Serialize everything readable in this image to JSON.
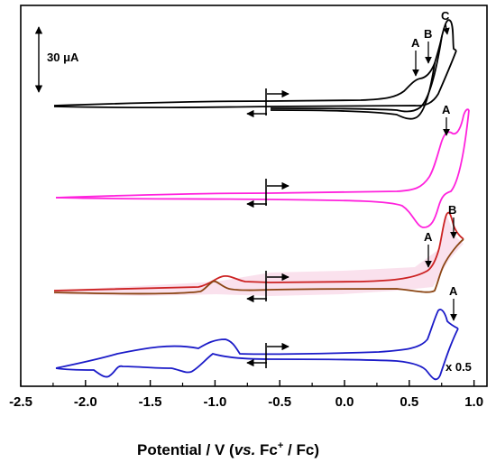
{
  "chart_data": {
    "type": "line",
    "title": "",
    "xlabel": "Potential / V (vs. Fc+ / Fc)",
    "xlabel_parts": {
      "main": "Potential / V (",
      "italic": "vs.",
      "fc": " Fc",
      "sup": "+",
      "end": " / Fc)"
    },
    "xlim": [
      -2.5,
      1.1
    ],
    "x_ticks": [
      -2.5,
      -2.0,
      -1.5,
      -1.0,
      -0.5,
      0.0,
      0.5,
      1.0
    ],
    "x_tick_labels": [
      "-2.5",
      "-2.0",
      "-1.5",
      "-1.0",
      "-0.5",
      "0.0",
      "0.5",
      "1.0"
    ],
    "y_axis": "no numeric axis; traces offset vertically",
    "scale_bar": {
      "label": "30 μA",
      "current_uA": 30
    },
    "colors": {
      "black": "#000000",
      "magenta": "#ff22dd",
      "red": "#cc2222",
      "brown": "#8b4513",
      "blue": "#1b1bc8",
      "pink_fill": "#f6c9de"
    },
    "series": [
      {
        "color": "#000000",
        "x_range": [
          -2.25,
          0.95
        ],
        "peaks": [
          {
            "label": "A",
            "x": 0.66
          },
          {
            "label": "B",
            "x": 0.78
          },
          {
            "label": "C",
            "x": 0.9
          }
        ]
      },
      {
        "color": "#ff22dd",
        "x_range": [
          -2.25,
          1.08
        ],
        "peaks": [
          {
            "label": "A",
            "x": 0.9
          }
        ]
      },
      {
        "color": "#cc2222",
        "x_range": [
          -2.25,
          1.02
        ],
        "peaks": [
          {
            "label": "A",
            "x": 0.76
          },
          {
            "label": "B",
            "x": 0.98
          }
        ]
      },
      {
        "color": "#1b1bc8",
        "x_range": [
          -2.25,
          1.02
        ],
        "note": "x 0.5",
        "peaks": [
          {
            "label": "A",
            "x": 0.98
          }
        ]
      }
    ],
    "start_potential": -0.53
  }
}
